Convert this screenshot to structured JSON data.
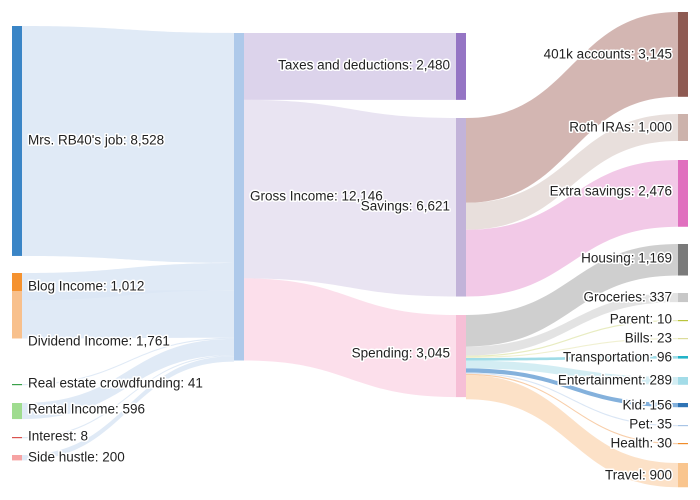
{
  "chart_data": {
    "type": "sankey",
    "title": "",
    "nodes": [
      {
        "id": "job",
        "label": "Mrs. RB40's job: 8,528",
        "value": 8528,
        "color": "#3a85c6"
      },
      {
        "id": "blog",
        "label": "Blog Income: 1,012",
        "value": 1012,
        "color": "#f5922f"
      },
      {
        "id": "dividend",
        "label": "Dividend Income: 1,761",
        "value": 1761,
        "color": "#f8c08c"
      },
      {
        "id": "realestate",
        "label": "Real estate crowdfunding: 41",
        "value": 41,
        "color": "#3aa14a"
      },
      {
        "id": "rental",
        "label": "Rental Income: 596",
        "value": 596,
        "color": "#9fdc8f"
      },
      {
        "id": "interest",
        "label": "Interest: 8",
        "value": 8,
        "color": "#d9534f"
      },
      {
        "id": "sidehustle",
        "label": "Side hustle: 200",
        "value": 200,
        "color": "#f6a3a3"
      },
      {
        "id": "gross",
        "label": "Gross Income: 12,146",
        "value": 12146,
        "color": "#aec9ea"
      },
      {
        "id": "taxes",
        "label": "Taxes and deductions: 2,480",
        "value": 2480,
        "color": "#9575c4"
      },
      {
        "id": "savings",
        "label": "Savings: 6,621",
        "value": 6621,
        "color": "#c2b3d9"
      },
      {
        "id": "spending",
        "label": "Spending: 3,045",
        "value": 3045,
        "color": "#f6bfd6"
      },
      {
        "id": "k401",
        "label": "401k accounts: 3,145",
        "value": 3145,
        "color": "#8e5a52"
      },
      {
        "id": "roth",
        "label": "Roth IRAs: 1,000",
        "value": 1000,
        "color": "#ccb2ab"
      },
      {
        "id": "extra",
        "label": "Extra savings: 2,476",
        "value": 2476,
        "color": "#e06fbe"
      },
      {
        "id": "housing",
        "label": "Housing: 1,169",
        "value": 1169,
        "color": "#7a7a7a"
      },
      {
        "id": "groceries",
        "label": "Groceries: 337",
        "value": 337,
        "color": "#c7c7c7"
      },
      {
        "id": "parent",
        "label": "Parent: 10",
        "value": 10,
        "color": "#b9c43c"
      },
      {
        "id": "bills",
        "label": "Bills: 23",
        "value": 23,
        "color": "#dcdc9a"
      },
      {
        "id": "transport",
        "label": "Transportation: 96",
        "value": 96,
        "color": "#22b3c8"
      },
      {
        "id": "entertain",
        "label": "Entertainment: 289",
        "value": 289,
        "color": "#a3dce8"
      },
      {
        "id": "kid",
        "label": "Kid: 156",
        "value": 156,
        "color": "#2f74b5"
      },
      {
        "id": "pet",
        "label": "Pet: 35",
        "value": 35,
        "color": "#a9c5e6"
      },
      {
        "id": "health",
        "label": "Health: 30",
        "value": 30,
        "color": "#f08c2a"
      },
      {
        "id": "travel",
        "label": "Travel: 900",
        "value": 900,
        "color": "#f9c58e"
      }
    ],
    "links": [
      {
        "source": "job",
        "target": "gross",
        "value": 8528
      },
      {
        "source": "blog",
        "target": "gross",
        "value": 1012
      },
      {
        "source": "dividend",
        "target": "gross",
        "value": 1761
      },
      {
        "source": "realestate",
        "target": "gross",
        "value": 41
      },
      {
        "source": "rental",
        "target": "gross",
        "value": 596
      },
      {
        "source": "interest",
        "target": "gross",
        "value": 8
      },
      {
        "source": "sidehustle",
        "target": "gross",
        "value": 200
      },
      {
        "source": "gross",
        "target": "taxes",
        "value": 2480
      },
      {
        "source": "gross",
        "target": "savings",
        "value": 6621
      },
      {
        "source": "gross",
        "target": "spending",
        "value": 3045
      },
      {
        "source": "savings",
        "target": "k401",
        "value": 3145
      },
      {
        "source": "savings",
        "target": "roth",
        "value": 1000
      },
      {
        "source": "savings",
        "target": "extra",
        "value": 2476
      },
      {
        "source": "spending",
        "target": "housing",
        "value": 1169
      },
      {
        "source": "spending",
        "target": "groceries",
        "value": 337
      },
      {
        "source": "spending",
        "target": "parent",
        "value": 10
      },
      {
        "source": "spending",
        "target": "bills",
        "value": 23
      },
      {
        "source": "spending",
        "target": "transport",
        "value": 96
      },
      {
        "source": "spending",
        "target": "entertain",
        "value": 289
      },
      {
        "source": "spending",
        "target": "kid",
        "value": 156
      },
      {
        "source": "spending",
        "target": "pet",
        "value": 35
      },
      {
        "source": "spending",
        "target": "health",
        "value": 30
      },
      {
        "source": "spending",
        "target": "travel",
        "value": 900
      }
    ]
  }
}
